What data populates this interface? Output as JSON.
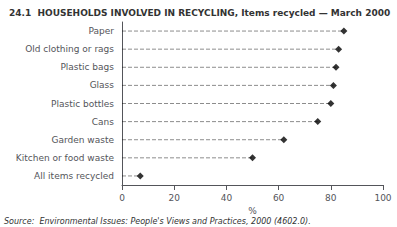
{
  "chart_data": {
    "type": "dot",
    "orientation": "horizontal",
    "title": "24.1  HOUSEHOLDS INVOLVED IN RECYCLING, Items recycled — March 2000",
    "categories": [
      "Paper",
      "Old clothing or rags",
      "Plastic bags",
      "Glass",
      "Plastic bottles",
      "Cans",
      "Garden waste",
      "Kitchen or food waste",
      "All items recycled"
    ],
    "values": [
      85,
      83,
      82,
      81,
      80,
      75,
      62,
      50,
      7
    ],
    "xlabel": "%",
    "xlim": [
      0,
      100
    ],
    "xticks": [
      0,
      20,
      40,
      60,
      80,
      100
    ],
    "annotations": [
      "Source:  Environmental Issues: People's Views and Practices, 2000 (4602.0)."
    ],
    "color": "#000000",
    "marker": "diamond",
    "line_style": "dashed",
    "grid": false
  }
}
